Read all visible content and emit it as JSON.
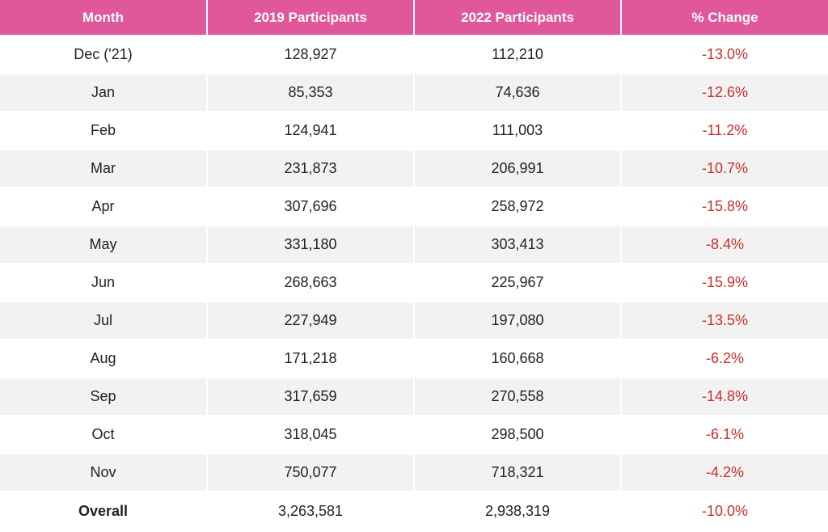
{
  "chart_data": {
    "type": "table",
    "columns": [
      "Month",
      "2019 Participants",
      "2022 Participants",
      "% Change"
    ],
    "rows": [
      {
        "month": "Dec ('21)",
        "p2019": "128,927",
        "p2022": "112,210",
        "change": "-13.0%"
      },
      {
        "month": "Jan",
        "p2019": "85,353",
        "p2022": "74,636",
        "change": "-12.6%"
      },
      {
        "month": "Feb",
        "p2019": "124,941",
        "p2022": "111,003",
        "change": "-11.2%"
      },
      {
        "month": "Mar",
        "p2019": "231,873",
        "p2022": "206,991",
        "change": "-10.7%"
      },
      {
        "month": "Apr",
        "p2019": "307,696",
        "p2022": "258,972",
        "change": "-15.8%"
      },
      {
        "month": "May",
        "p2019": "331,180",
        "p2022": "303,413",
        "change": "-8.4%"
      },
      {
        "month": "Jun",
        "p2019": "268,663",
        "p2022": "225,967",
        "change": "-15.9%"
      },
      {
        "month": "Jul",
        "p2019": "227,949",
        "p2022": "197,080",
        "change": "-13.5%"
      },
      {
        "month": "Aug",
        "p2019": "171,218",
        "p2022": "160,668",
        "change": "-6.2%"
      },
      {
        "month": "Sep",
        "p2019": "317,659",
        "p2022": "270,558",
        "change": "-14.8%"
      },
      {
        "month": "Oct",
        "p2019": "318,045",
        "p2022": "298,500",
        "change": "-6.1%"
      },
      {
        "month": "Nov",
        "p2019": "750,077",
        "p2022": "718,321",
        "change": "-4.2%"
      }
    ],
    "overall": {
      "month": "Overall",
      "p2019": "3,263,581",
      "p2022": "2,938,319",
      "change": "-10.0%"
    }
  },
  "colors": {
    "header_bg": "#e0579a",
    "header_text": "#ffffff",
    "negative_change": "#c9302c",
    "row_alt_bg": "#f1f2f1"
  }
}
